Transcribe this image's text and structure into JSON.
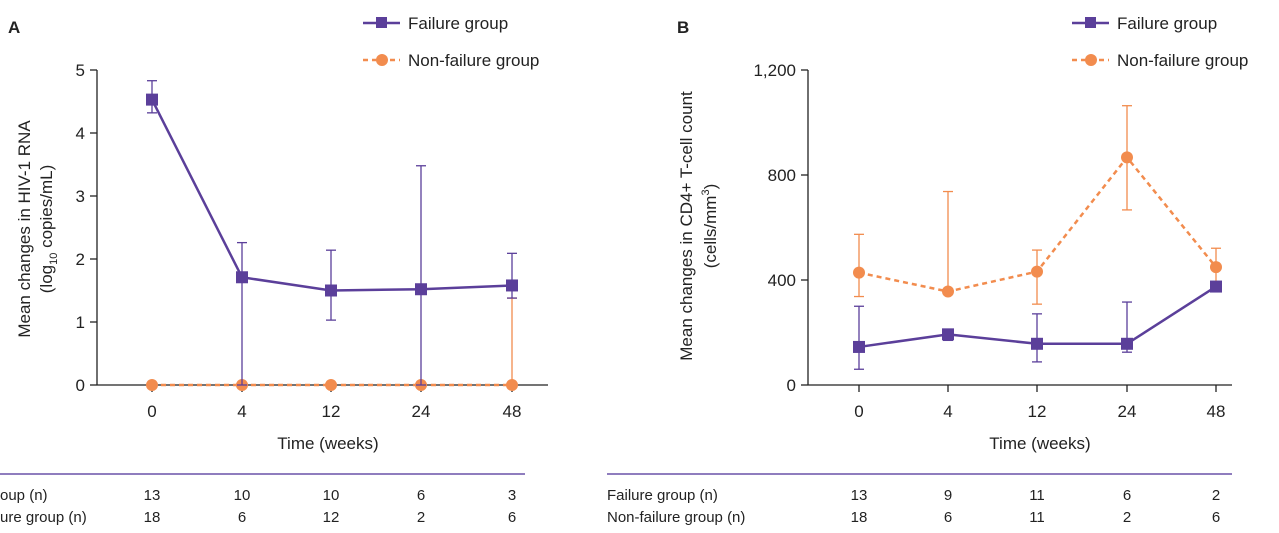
{
  "colors": {
    "failure": "#5b3f9a",
    "non_failure": "#f28c4e",
    "axis": "#222222",
    "rule": "#6a52a8"
  },
  "chart_data": [
    {
      "panel": "A",
      "type": "line",
      "x_categories": [
        "0",
        "4",
        "12",
        "24",
        "48"
      ],
      "xlabel": "Time (weeks)",
      "ylabel_line1": "Mean changes in HIV-1 RNA",
      "ylabel_line2": "(log",
      "ylabel_sub": "10",
      "ylabel_line2_end": " copies/mL)",
      "ylim": [
        0,
        5
      ],
      "yticks": [
        "0",
        "1",
        "2",
        "3",
        "4",
        "5"
      ],
      "ytick_values": [
        0,
        1,
        2,
        3,
        4,
        5
      ],
      "legend_position": "top-right",
      "series": [
        {
          "name": "Failure group",
          "style": "solid",
          "marker": "square",
          "values": [
            4.53,
            1.71,
            1.5,
            1.52,
            1.58
          ],
          "err_upper": [
            4.83,
            2.26,
            2.14,
            3.48,
            2.09
          ],
          "err_lower": [
            4.32,
            0,
            1.03,
            0,
            1.38
          ]
        },
        {
          "name": "Non-failure group",
          "style": "dashed",
          "marker": "circle",
          "values": [
            0,
            0,
            0,
            0,
            0
          ],
          "err_upper": [
            0,
            0,
            0,
            0,
            1.38
          ],
          "err_lower": [
            0,
            0,
            0,
            0,
            0
          ]
        }
      ],
      "table": {
        "rows": [
          {
            "label": "Failure group (n)",
            "visible_label": "oup (n)",
            "values": [
              "13",
              "10",
              "10",
              "6",
              "3"
            ]
          },
          {
            "label": "Non-failure group (n)",
            "visible_label": "ure group (n)",
            "values": [
              "18",
              "6",
              "12",
              "2",
              "6"
            ]
          }
        ]
      }
    },
    {
      "panel": "B",
      "type": "line",
      "x_categories": [
        "0",
        "4",
        "12",
        "24",
        "48"
      ],
      "xlabel": "Time (weeks)",
      "ylabel_line1": "Mean changes in CD4+ T-cell count",
      "ylabel_line2": "(cells/mm",
      "ylabel_sup": "3",
      "ylabel_line2_end": ")",
      "ylim": [
        0,
        1200
      ],
      "yticks": [
        "0",
        "400",
        "800",
        "1,200"
      ],
      "ytick_values": [
        0,
        400,
        800,
        1200
      ],
      "legend_position": "top-right",
      "series": [
        {
          "name": "Failure group",
          "style": "solid",
          "marker": "square",
          "values": [
            145,
            193,
            157,
            157,
            375
          ],
          "err_upper": [
            300,
            193,
            271,
            316,
            375
          ],
          "err_lower": [
            60,
            170,
            88,
            125,
            375
          ]
        },
        {
          "name": "Non-failure group",
          "style": "dashed",
          "marker": "circle",
          "values": [
            428,
            356,
            432,
            867,
            449
          ],
          "err_upper": [
            574,
            737,
            514,
            1064,
            521
          ],
          "err_lower": [
            337,
            356,
            308,
            667,
            385
          ]
        }
      ],
      "table": {
        "rows": [
          {
            "label": "Failure group (n)",
            "visible_label": "Failure group (n)",
            "values": [
              "13",
              "9",
              "11",
              "6",
              "2"
            ]
          },
          {
            "label": "Non-failure group (n)",
            "visible_label": "Non-failure group (n)",
            "values": [
              "18",
              "6",
              "11",
              "2",
              "6"
            ]
          }
        ]
      }
    }
  ]
}
